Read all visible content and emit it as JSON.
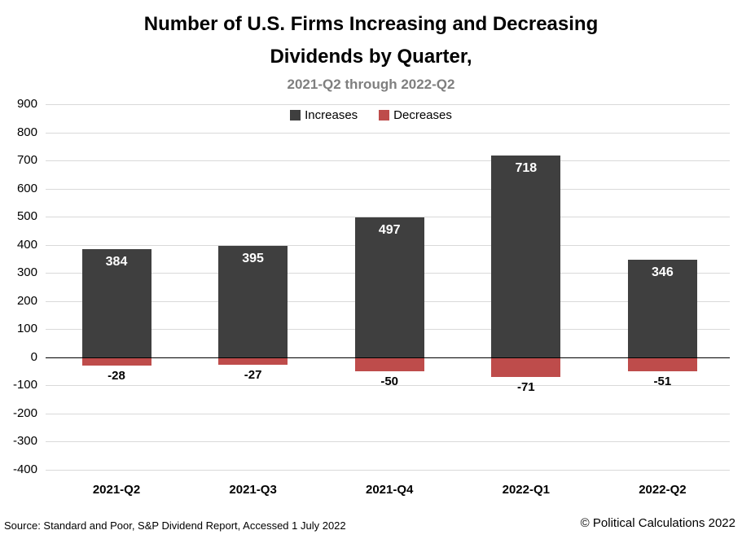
{
  "chart": {
    "title_line1": "Number of U.S. Firms Increasing and Decreasing",
    "title_line2": "Dividends by Quarter,",
    "subtitle": "2021-Q2 through 2022-Q2"
  },
  "footer": {
    "source": "Source: Standard and Poor, S&P Dividend Report, Accessed 1 July 2022",
    "copyright": "© Political Calculations 2022"
  },
  "chart_data": {
    "type": "bar",
    "title": "Number of U.S. Firms Increasing and Decreasing Dividends by Quarter,",
    "subtitle": "2021-Q2 through 2022-Q2",
    "categories": [
      "2021-Q2",
      "2021-Q3",
      "2021-Q4",
      "2022-Q1",
      "2022-Q2"
    ],
    "series": [
      {
        "name": "Increases",
        "color": "#3F3F3F",
        "values": [
          384,
          395,
          497,
          718,
          346
        ]
      },
      {
        "name": "Decreases",
        "color": "#BE4C4B",
        "values": [
          -28,
          -27,
          -50,
          -71,
          -51
        ]
      }
    ],
    "ylim": [
      -400,
      900
    ],
    "ytick_step": 100,
    "grid": true,
    "legend_position": "top-center",
    "colors": {
      "grid": "#D9D9D9",
      "zero_axis": "#000000",
      "increase_value_label": "#FFFFFF",
      "decrease_value_label": "#000000",
      "subtitle_text": "#7F7F7F"
    }
  }
}
